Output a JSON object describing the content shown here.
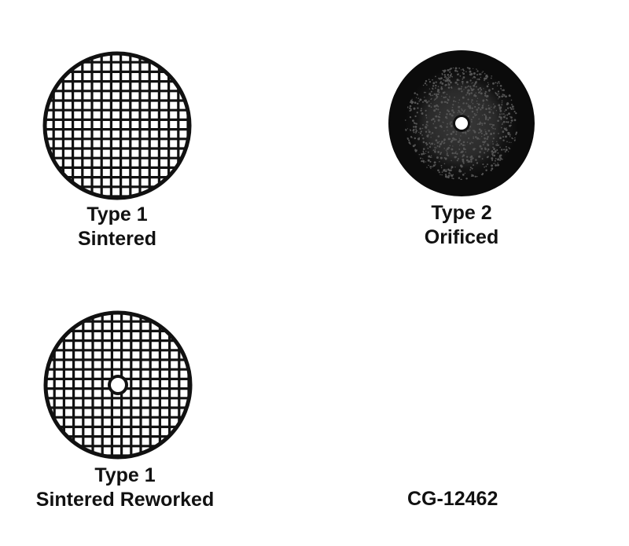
{
  "figures": [
    {
      "line1": "Type 1",
      "line2": "Sintered",
      "pattern": "grid",
      "center_hole": false
    },
    {
      "line1": "Type 2",
      "line2": "Orificed",
      "pattern": "stippled",
      "center_hole": true
    },
    {
      "line1": "Type 1",
      "line2": "Sintered Reworked",
      "pattern": "grid",
      "center_hole": true
    }
  ],
  "figure_code": "CG-12462",
  "colors": {
    "ink": "#111111",
    "paper": "#ffffff",
    "stipple_light": "#555555"
  }
}
